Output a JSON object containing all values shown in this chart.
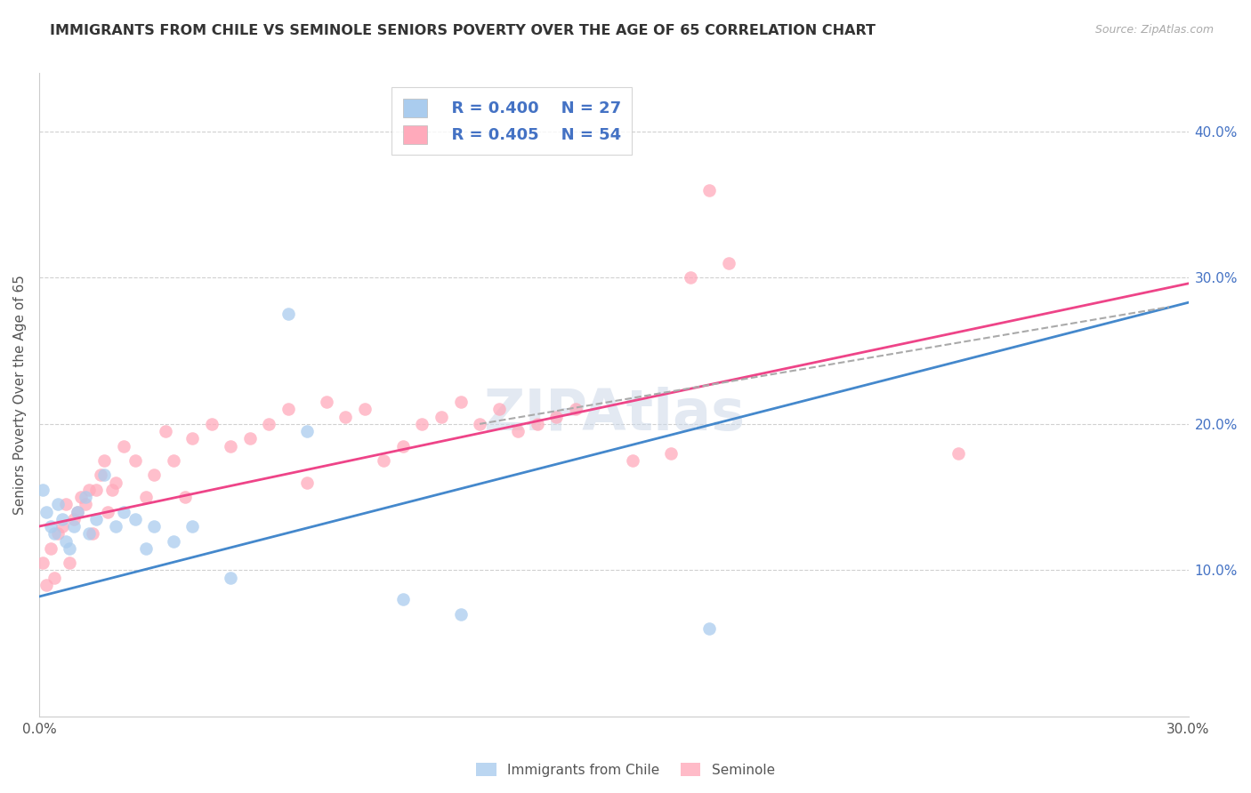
{
  "title": "IMMIGRANTS FROM CHILE VS SEMINOLE SENIORS POVERTY OVER THE AGE OF 65 CORRELATION CHART",
  "source": "Source: ZipAtlas.com",
  "ylabel": "Seniors Poverty Over the Age of 65",
  "xlabel_blue": "Immigrants from Chile",
  "xlabel_pink": "Seminole",
  "xlim": [
    0.0,
    0.3
  ],
  "ylim": [
    0.0,
    0.44
  ],
  "xticks": [
    0.0,
    0.05,
    0.1,
    0.15,
    0.2,
    0.25,
    0.3
  ],
  "xtick_labels": [
    "0.0%",
    "",
    "",
    "",
    "",
    "",
    "30.0%"
  ],
  "yticks_right": [
    0.1,
    0.2,
    0.3,
    0.4
  ],
  "ytick_labels_right": [
    "10.0%",
    "20.0%",
    "30.0%",
    "40.0%"
  ],
  "grid_color": "#d0d0d0",
  "blue_color": "#aaccee",
  "pink_color": "#ffaabb",
  "blue_line_color": "#4488cc",
  "pink_line_color": "#ee4488",
  "legend_R_blue": "R = 0.400",
  "legend_N_blue": "N = 27",
  "legend_R_pink": "R = 0.405",
  "legend_N_pink": "N = 54",
  "blue_scatter_x": [
    0.001,
    0.002,
    0.003,
    0.004,
    0.005,
    0.006,
    0.007,
    0.008,
    0.009,
    0.01,
    0.012,
    0.013,
    0.015,
    0.017,
    0.02,
    0.022,
    0.025,
    0.028,
    0.03,
    0.035,
    0.04,
    0.05,
    0.065,
    0.07,
    0.095,
    0.11,
    0.175
  ],
  "blue_scatter_y": [
    0.155,
    0.14,
    0.13,
    0.125,
    0.145,
    0.135,
    0.12,
    0.115,
    0.13,
    0.14,
    0.15,
    0.125,
    0.135,
    0.165,
    0.13,
    0.14,
    0.135,
    0.115,
    0.13,
    0.12,
    0.13,
    0.095,
    0.275,
    0.195,
    0.08,
    0.07,
    0.06
  ],
  "pink_scatter_x": [
    0.001,
    0.002,
    0.003,
    0.004,
    0.005,
    0.006,
    0.007,
    0.008,
    0.009,
    0.01,
    0.011,
    0.012,
    0.013,
    0.014,
    0.015,
    0.016,
    0.017,
    0.018,
    0.019,
    0.02,
    0.022,
    0.025,
    0.028,
    0.03,
    0.033,
    0.035,
    0.038,
    0.04,
    0.045,
    0.05,
    0.055,
    0.06,
    0.065,
    0.07,
    0.075,
    0.08,
    0.085,
    0.09,
    0.095,
    0.1,
    0.105,
    0.11,
    0.115,
    0.12,
    0.125,
    0.13,
    0.135,
    0.14,
    0.155,
    0.165,
    0.17,
    0.175,
    0.18,
    0.24
  ],
  "pink_scatter_y": [
    0.105,
    0.09,
    0.115,
    0.095,
    0.125,
    0.13,
    0.145,
    0.105,
    0.135,
    0.14,
    0.15,
    0.145,
    0.155,
    0.125,
    0.155,
    0.165,
    0.175,
    0.14,
    0.155,
    0.16,
    0.185,
    0.175,
    0.15,
    0.165,
    0.195,
    0.175,
    0.15,
    0.19,
    0.2,
    0.185,
    0.19,
    0.2,
    0.21,
    0.16,
    0.215,
    0.205,
    0.21,
    0.175,
    0.185,
    0.2,
    0.205,
    0.215,
    0.2,
    0.21,
    0.195,
    0.2,
    0.205,
    0.21,
    0.175,
    0.18,
    0.3,
    0.36,
    0.31,
    0.18
  ],
  "blue_line_x": [
    0.0,
    0.3
  ],
  "blue_line_y": [
    0.082,
    0.283
  ],
  "pink_line_x": [
    0.0,
    0.3
  ],
  "pink_line_y": [
    0.13,
    0.296
  ],
  "dashed_line_x": [
    0.115,
    0.295
  ],
  "dashed_line_y": [
    0.2,
    0.28
  ],
  "figsize": [
    14.06,
    8.92
  ],
  "dpi": 100
}
